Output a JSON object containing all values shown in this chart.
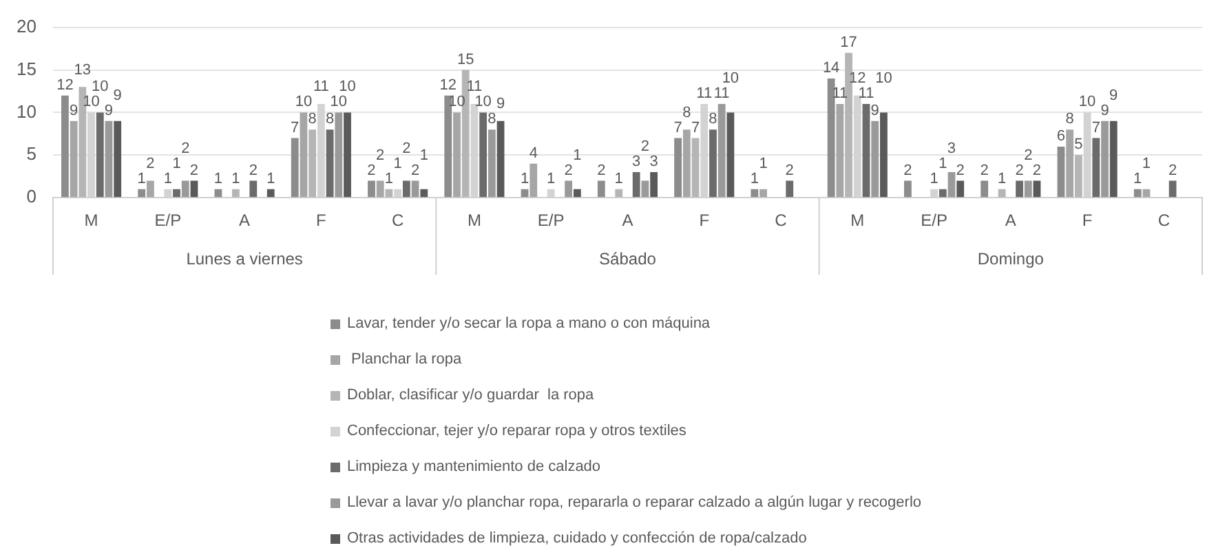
{
  "chart_data": {
    "type": "bar",
    "categories": [
      "M",
      "E/P",
      "A",
      "F",
      "C",
      "M",
      "E/P",
      "A",
      "F",
      "C",
      "M",
      "E/P",
      "A",
      "F",
      "C"
    ],
    "series": [
      {
        "name": "Lavar, tender y/o secar la ropa a mano o con máquina",
        "color": "#8c8c8c",
        "values": [
          12,
          1,
          1,
          7,
          2,
          12,
          1,
          2,
          7,
          1,
          14,
          2,
          2,
          6,
          1
        ]
      },
      {
        "name": " Planchar la ropa",
        "color": "#a6a6a6",
        "values": [
          9,
          2,
          null,
          10,
          2,
          10,
          4,
          null,
          8,
          1,
          11,
          null,
          null,
          8,
          1
        ]
      },
      {
        "name": "Doblar, clasificar y/o guardar  la ropa",
        "color": "#b5b5b5",
        "values": [
          13,
          null,
          1,
          8,
          1,
          15,
          null,
          1,
          7,
          null,
          17,
          null,
          1,
          5,
          null
        ]
      },
      {
        "name": "Confeccionar, tejer y/o reparar ropa y otros textiles",
        "color": "#d3d3d3",
        "values": [
          10,
          1,
          null,
          11,
          1,
          11,
          1,
          null,
          11,
          null,
          12,
          1,
          null,
          10,
          null
        ]
      },
      {
        "name": "Limpieza y mantenimiento de calzado",
        "color": "#6b6b6b",
        "values": [
          10,
          1,
          2,
          8,
          2,
          10,
          null,
          3,
          8,
          2,
          11,
          1,
          2,
          7,
          2
        ]
      },
      {
        "name": "Llevar a lavar y/o planchar ropa, repararla o reparar calzado a algún lugar y recogerlo",
        "color": "#9a9a9a",
        "values": [
          9,
          2,
          null,
          10,
          2,
          8,
          2,
          2,
          11,
          null,
          9,
          3,
          2,
          9,
          null
        ]
      },
      {
        "name": "Otras actividades de limpieza, cuidado y confección de ropa/calzado",
        "color": "#5a5a5a",
        "values": [
          9,
          2,
          1,
          10,
          1,
          9,
          1,
          3,
          10,
          null,
          10,
          2,
          2,
          9,
          null
        ]
      }
    ],
    "ylim": [
      0,
      20
    ],
    "yticks": [
      0,
      5,
      10,
      15,
      20
    ],
    "grid": "y",
    "legend": "bottom",
    "data_labels": true,
    "annotations": [
      "Lunes a viernes",
      "Sábado",
      "Domingo"
    ]
  }
}
